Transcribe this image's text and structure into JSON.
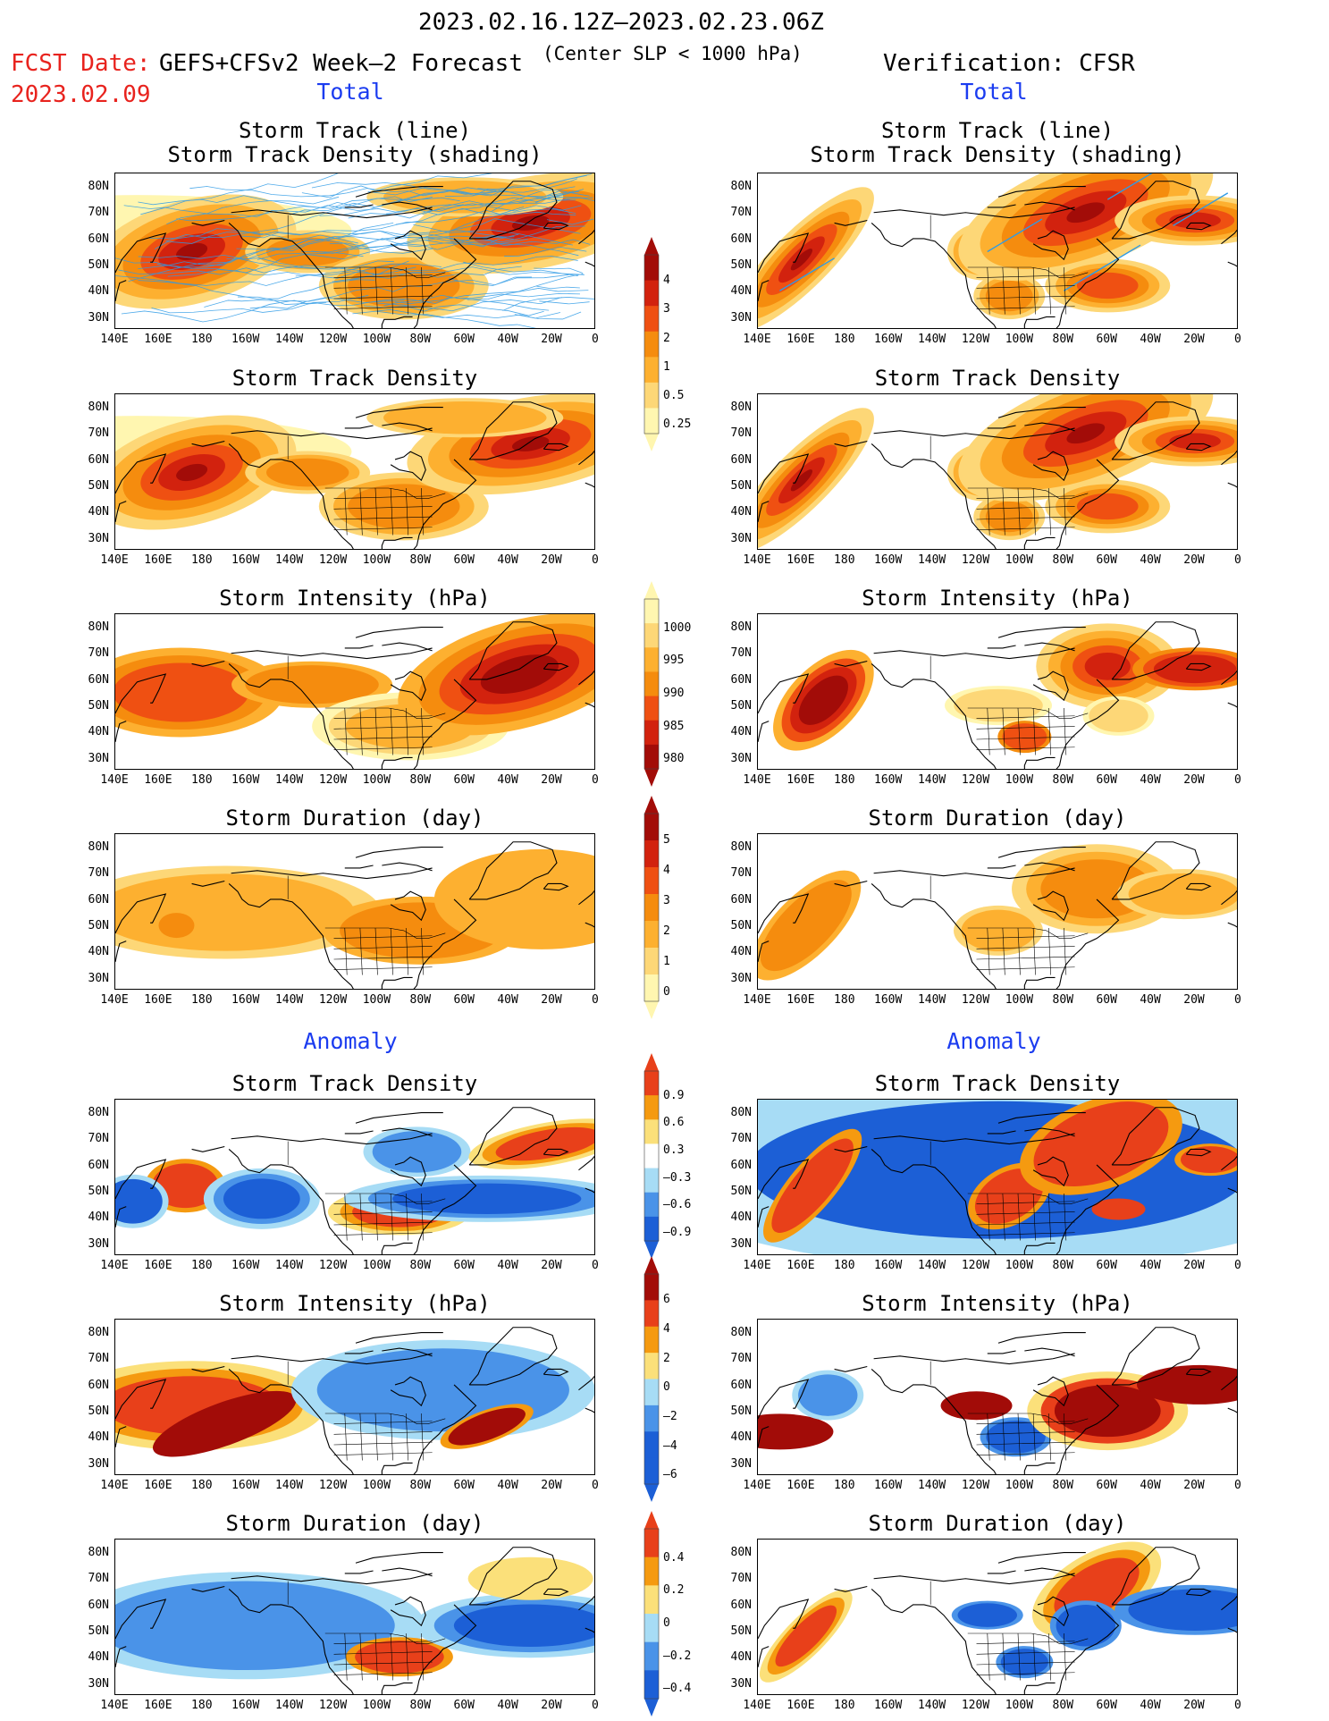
{
  "header": {
    "title": "2023.02.16.12Z–2023.02.23.06Z",
    "fcst_label": "FCST Date:",
    "fcst_date": "2023.02.09",
    "forecast_desc": "GEFS+CFSv2 Week–2 Forecast",
    "criterion": "(Center SLP < 1000 hPa)",
    "verification": "Verification: CFSR"
  },
  "sections": {
    "total": "Total",
    "anomaly": "Anomaly"
  },
  "panel_titles": {
    "track": [
      "Storm Track (line)",
      "Storm Track Density (shading)"
    ],
    "density": "Storm Track Density",
    "intensity": "Storm Intensity (hPa)",
    "duration": "Storm Duration (day)"
  },
  "axes": {
    "lat_labels": [
      "80N",
      "70N",
      "60N",
      "50N",
      "40N",
      "30N"
    ],
    "lon_labels": [
      "140E",
      "160E",
      "180",
      "160W",
      "140W",
      "120W",
      "100W",
      "80W",
      "60W",
      "40W",
      "20W",
      "0"
    ]
  },
  "colorbars": [
    {
      "name": "density-total",
      "labels": [
        "4",
        "3",
        "2",
        "1",
        "0.5",
        "0.25"
      ]
    },
    {
      "name": "intensity-total",
      "labels": [
        "1000",
        "995",
        "990",
        "985",
        "980"
      ]
    },
    {
      "name": "duration-total",
      "labels": [
        "5",
        "4",
        "3",
        "2",
        "1",
        "0"
      ]
    },
    {
      "name": "density-anomaly",
      "labels": [
        "0.9",
        "0.6",
        "0.3",
        "–0.3",
        "–0.6",
        "–0.9"
      ]
    },
    {
      "name": "intensity-anomaly",
      "labels": [
        "6",
        "4",
        "2",
        "0",
        "–2",
        "–4",
        "–6"
      ]
    },
    {
      "name": "duration-anomaly",
      "labels": [
        "0.4",
        "0.2",
        "0",
        "–0.2",
        "–0.4"
      ]
    }
  ],
  "colors": {
    "seq_light_to_dark": [
      "#fff6b0",
      "#fdd777",
      "#fdb030",
      "#f58c0e",
      "#ef5012",
      "#d2220e",
      "#a20c08"
    ],
    "anom_blue": [
      "#1c5fd6",
      "#4a93e8",
      "#a7dcf5"
    ],
    "anom_red": [
      "#fbe07a",
      "#f59a10",
      "#e8401a"
    ],
    "track_line": "#2e9be6",
    "title_red": "#e8231e",
    "section_blue": "#1b3cf0"
  }
}
